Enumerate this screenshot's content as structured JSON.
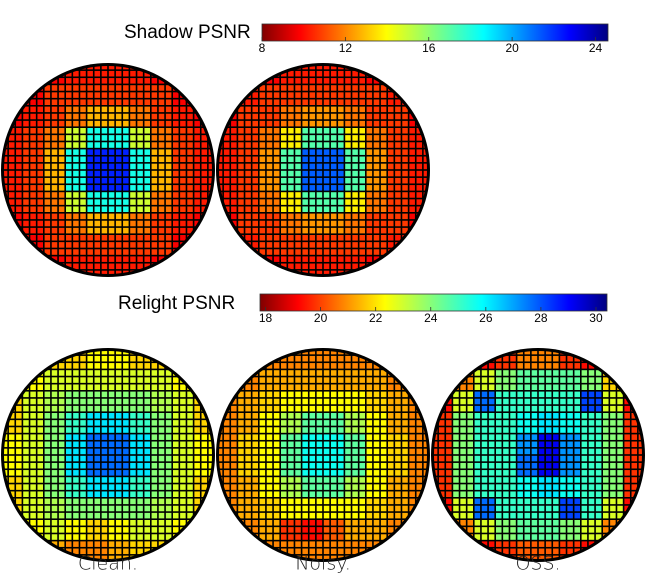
{
  "chart_data": [
    {
      "type": "heatmap",
      "title": "Shadow PSNR",
      "zlim": [
        8,
        24.6
      ],
      "zticks": [
        8,
        12,
        16,
        20,
        24
      ],
      "panels": [
        {
          "values": [
            [
              null,
              10,
              10,
              10.5,
              10.5,
              10.5,
              10.5,
              10,
              10,
              null
            ],
            [
              10,
              10,
              11,
              11,
              11,
              11,
              11,
              11,
              10,
              10
            ],
            [
              10,
              10.5,
              11,
              12,
              13,
              13,
              12,
              11,
              10.5,
              10
            ],
            [
              10.5,
              11,
              12,
              15,
              18,
              18,
              15,
              12,
              11,
              10.5
            ],
            [
              10.5,
              11,
              13,
              18,
              22,
              22,
              18,
              13,
              11,
              10.5
            ],
            [
              10.5,
              11,
              13,
              18,
              22,
              22,
              18,
              13,
              11,
              10.5
            ],
            [
              10.5,
              11,
              12,
              15,
              18,
              18,
              15,
              12,
              11,
              10.5
            ],
            [
              10,
              10.5,
              11,
              12,
              13,
              13,
              12,
              11,
              10.5,
              10
            ],
            [
              10,
              10,
              11,
              11,
              11,
              11,
              11,
              11,
              10,
              10
            ],
            [
              null,
              10,
              10,
              10.5,
              10.5,
              10.5,
              10.5,
              10,
              10,
              null
            ]
          ]
        },
        {
          "values": [
            [
              null,
              10,
              10,
              10.5,
              10.5,
              10.5,
              10.5,
              10,
              10,
              null
            ],
            [
              10,
              10.5,
              11,
              11,
              11,
              11,
              11,
              11,
              10.5,
              10
            ],
            [
              10,
              11,
              11,
              12,
              12.5,
              12.5,
              12,
              11,
              11,
              10
            ],
            [
              10.5,
              11,
              12,
              14,
              17,
              17,
              14,
              12,
              11,
              10.5
            ],
            [
              10.5,
              11,
              12.5,
              17,
              21,
              21,
              17,
              12.5,
              11,
              10.5
            ],
            [
              10.5,
              11,
              12.5,
              17,
              21,
              21,
              17,
              12.5,
              11,
              10.5
            ],
            [
              10.5,
              11,
              12,
              14,
              17,
              17,
              14,
              12,
              11,
              10.5
            ],
            [
              10,
              11,
              11,
              12,
              12.5,
              12.5,
              12,
              11,
              11,
              10
            ],
            [
              10,
              10.5,
              11,
              11,
              11,
              11,
              11,
              11,
              10.5,
              10
            ],
            [
              null,
              10,
              10,
              10.5,
              10.5,
              10.5,
              10.5,
              10,
              10,
              null
            ]
          ]
        }
      ]
    },
    {
      "type": "heatmap",
      "title": "Relight PSNR",
      "zlim": [
        17.8,
        30.4
      ],
      "zticks": [
        18,
        20,
        22,
        24,
        26,
        28,
        30
      ],
      "panels": [
        {
          "name": "Clean.",
          "values": [
            [
              null,
              21.5,
              22,
              22,
              22.5,
              22.5,
              22,
              22,
              21.5,
              null
            ],
            [
              21.5,
              22.5,
              23,
              23,
              23,
              23,
              23,
              23,
              22.5,
              21.5
            ],
            [
              22,
              23,
              23.5,
              24,
              24,
              24,
              24,
              23.5,
              23,
              22
            ],
            [
              22,
              23,
              24,
              25,
              26,
              26,
              25,
              24,
              23,
              22
            ],
            [
              22.5,
              23,
              24,
              26,
              27.5,
              27.5,
              26,
              24,
              23,
              22.5
            ],
            [
              22.5,
              23,
              24,
              26,
              27.5,
              27.5,
              26,
              24,
              23,
              22.5
            ],
            [
              22,
              23,
              24,
              25,
              26,
              26,
              25,
              24,
              23,
              22
            ],
            [
              22,
              23,
              23.5,
              24,
              24,
              24,
              24,
              23.5,
              23,
              22
            ],
            [
              21.5,
              22.5,
              23,
              22.5,
              22,
              22.5,
              23,
              23,
              22.5,
              21.5
            ],
            [
              null,
              21,
              21.5,
              21,
              21,
              21.5,
              22,
              22,
              21.5,
              null
            ]
          ]
        },
        {
          "name": "Noisy.",
          "values": [
            [
              null,
              20.5,
              21,
              21,
              21,
              21,
              21,
              21,
              20.5,
              null
            ],
            [
              20.5,
              21,
              21.5,
              21.5,
              21.5,
              21.5,
              21.5,
              21.5,
              21,
              20.5
            ],
            [
              21,
              21.5,
              22,
              22.5,
              22.5,
              22.5,
              22.5,
              22,
              21.5,
              21
            ],
            [
              21,
              21.5,
              22.5,
              23.5,
              24.5,
              24.5,
              23.5,
              22.5,
              21.5,
              21
            ],
            [
              21,
              22,
              22.5,
              24.5,
              25.5,
              25.5,
              24.5,
              22.5,
              22,
              21
            ],
            [
              21,
              22,
              22.5,
              24.5,
              25.5,
              25.5,
              24.5,
              22.5,
              22,
              21
            ],
            [
              21,
              21.5,
              22.5,
              23.5,
              24.5,
              24.5,
              23.5,
              22.5,
              21.5,
              21
            ],
            [
              21,
              21.5,
              22,
              22.5,
              22.5,
              22.5,
              22.5,
              22,
              21.5,
              21
            ],
            [
              20.5,
              21,
              21.5,
              20,
              19.5,
              20.5,
              21.5,
              21.5,
              21,
              20.5
            ],
            [
              null,
              20.5,
              21,
              21,
              21,
              21,
              21,
              21,
              20.5,
              null
            ]
          ]
        },
        {
          "name": "OSS.",
          "values": [
            [
              null,
              19,
              19.5,
              20,
              21,
              21,
              20,
              19.5,
              19,
              null
            ],
            [
              19,
              21,
              23,
              24,
              24.5,
              24.5,
              24.5,
              24,
              22,
              19
            ],
            [
              19.5,
              23,
              27.5,
              25,
              25,
              25,
              25,
              28,
              23,
              19.5
            ],
            [
              20,
              24,
              25,
              25,
              25.5,
              26,
              25.5,
              25,
              24,
              20
            ],
            [
              20,
              24,
              25,
              25,
              27,
              29,
              27,
              25,
              24,
              20
            ],
            [
              20,
              24,
              25,
              25,
              27.5,
              29,
              27,
              25,
              24,
              20
            ],
            [
              20,
              24,
              25,
              25,
              25.5,
              26,
              25.5,
              25,
              24,
              20
            ],
            [
              19.5,
              23,
              27.5,
              25,
              25,
              25,
              28,
              25,
              23,
              19.5
            ],
            [
              19,
              21,
              23,
              24,
              24.5,
              24.5,
              24,
              23,
              21,
              19
            ],
            [
              null,
              19,
              19.5,
              20,
              20.5,
              20.5,
              20,
              19.5,
              19,
              null
            ]
          ]
        }
      ]
    }
  ]
}
